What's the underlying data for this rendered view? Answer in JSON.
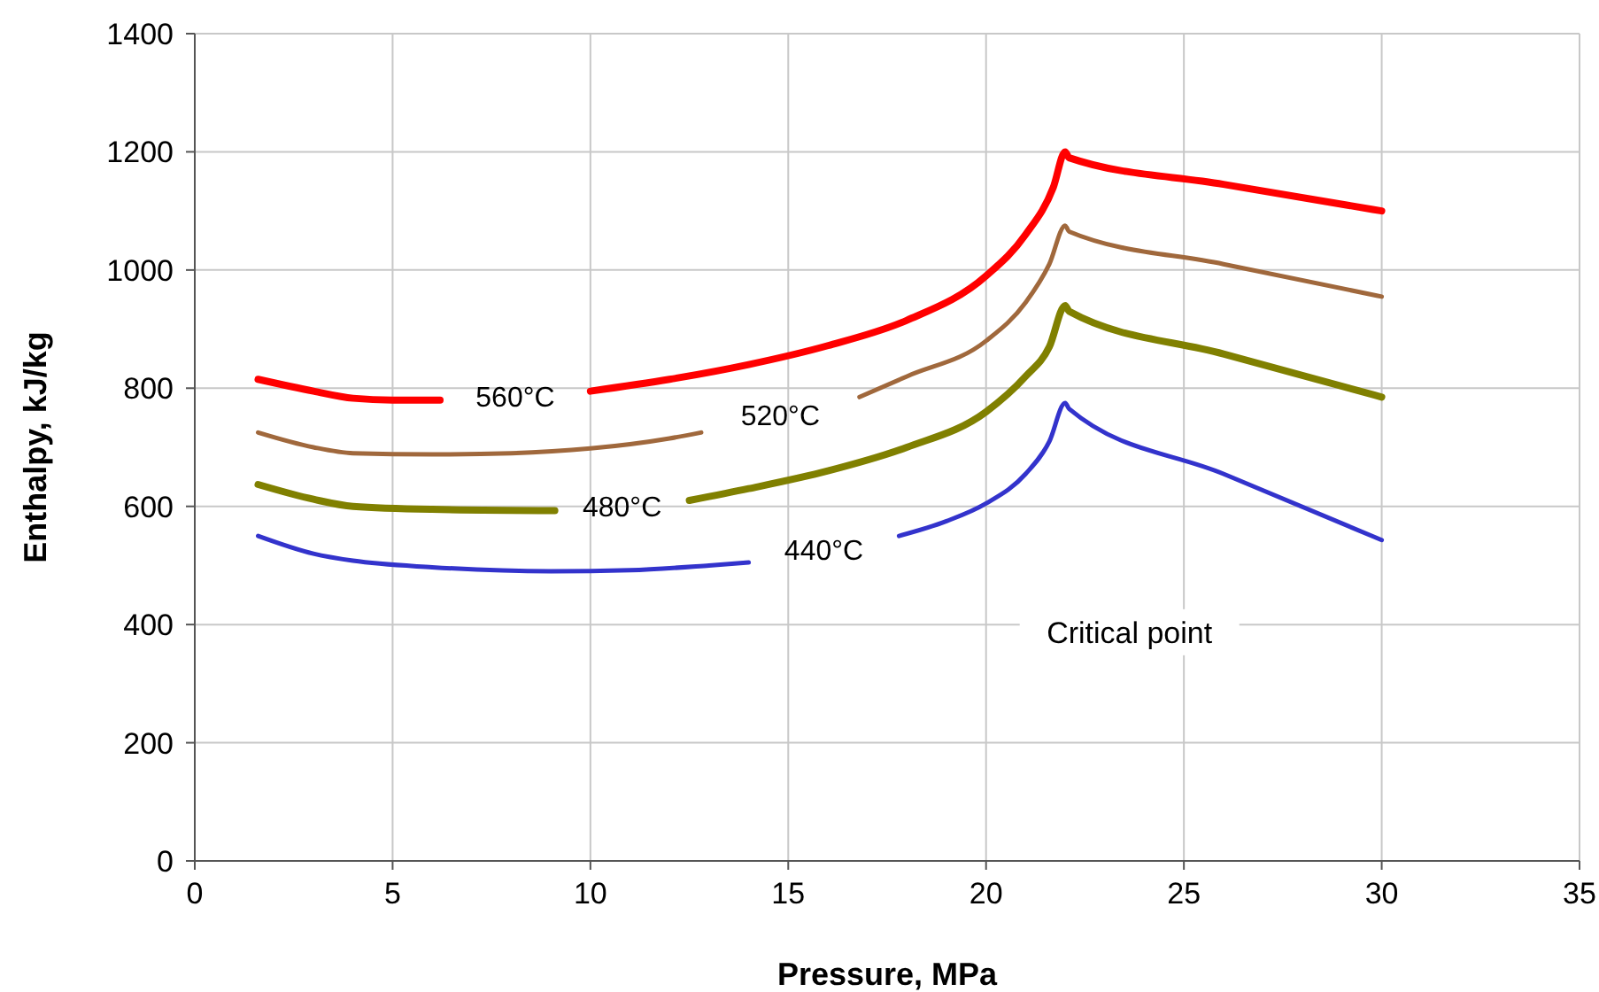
{
  "chart_data": {
    "type": "line",
    "xlabel": "Pressure, MPa",
    "ylabel": "Enthalpy, kJ/kg",
    "xlim": [
      0,
      35
    ],
    "xticks": [
      0,
      5,
      10,
      15,
      20,
      25,
      30,
      35
    ],
    "ylim": [
      0,
      1400
    ],
    "yticks": [
      0,
      200,
      400,
      600,
      800,
      1000,
      1200,
      1400
    ],
    "grid": true,
    "marker": "none",
    "line_style": "solid",
    "annotations": [
      "Critical point"
    ],
    "series": [
      {
        "name": "560°C",
        "color": "#ff0000",
        "x": [
          1.6,
          3,
          4,
          5,
          6.2,
          8,
          10,
          12,
          14,
          16,
          18,
          20,
          21,
          21.7,
          22,
          22.1,
          26,
          30
        ],
        "values": [
          815,
          795,
          783,
          780,
          780,
          null,
          795,
          815,
          840,
          872,
          915,
          990,
          1060,
          1140,
          1200,
          1190,
          1145,
          1100
        ]
      },
      {
        "name": "520°C",
        "color": "#a0683c",
        "x": [
          1.6,
          3,
          4,
          6,
          8,
          10,
          12,
          12.8,
          15,
          16.8,
          18,
          20,
          21,
          21.6,
          22,
          22.1,
          26,
          30
        ],
        "values": [
          725,
          700,
          690,
          688,
          690,
          698,
          715,
          725,
          null,
          785,
          820,
          880,
          945,
          1010,
          1075,
          1065,
          1010,
          955
        ]
      },
      {
        "name": "480°C",
        "color": "#808000",
        "x": [
          1.6,
          3,
          4,
          6,
          9.1,
          11,
          12.5,
          14,
          16,
          18,
          20,
          21,
          21.6,
          22,
          22.1,
          26,
          30
        ],
        "values": [
          637,
          612,
          600,
          595,
          593,
          null,
          610,
          630,
          660,
          700,
          760,
          820,
          870,
          940,
          930,
          858,
          785
        ]
      },
      {
        "name": "440°C",
        "color": "#3333cc",
        "x": [
          1.6,
          3,
          4,
          6,
          9,
          11,
          13,
          14,
          16,
          17.8,
          19,
          20,
          21,
          21.6,
          22,
          22.1,
          26,
          30
        ],
        "values": [
          550,
          520,
          508,
          497,
          490,
          492,
          500,
          505,
          null,
          550,
          575,
          605,
          655,
          710,
          775,
          765,
          655,
          543
        ]
      }
    ]
  }
}
